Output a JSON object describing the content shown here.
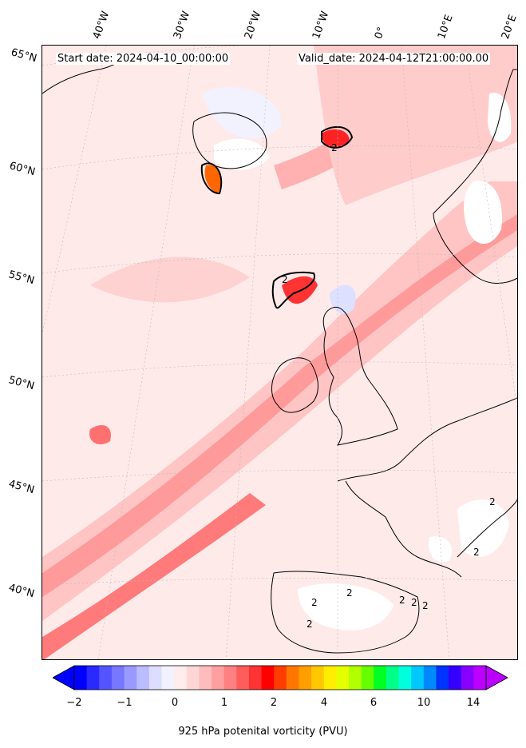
{
  "header": {
    "start_date": "Start date: 2024-04-10_00:00:00",
    "valid_date": "Valid_date: 2024-04-12T21:00:00.00"
  },
  "lat_labels": [
    "65°N",
    "60°N",
    "55°N",
    "50°N",
    "45°N",
    "40°N"
  ],
  "lon_labels": [
    "40°W",
    "30°W",
    "20°W",
    "10°W",
    "0°",
    "10°E",
    "20°E"
  ],
  "contour_labels": [
    "2",
    "2",
    "2",
    "2",
    "2",
    "2",
    "2",
    "2",
    "2",
    "2"
  ],
  "colorbar": {
    "ticks": [
      "−2",
      "−1",
      "0",
      "1",
      "2",
      "4",
      "6",
      "10",
      "14"
    ],
    "label": "925 hPa potenital vorticity (PVU)",
    "colors": [
      "#0000ff",
      "#2a2aff",
      "#5555ff",
      "#7777ff",
      "#9999ff",
      "#bbbbff",
      "#ddddff",
      "#f2f2ff",
      "#ffecec",
      "#ffd6d6",
      "#ffbcbc",
      "#ffa0a0",
      "#ff8080",
      "#ff5c5c",
      "#ff3333",
      "#ff0000",
      "#ff3d00",
      "#ff7700",
      "#ff9f00",
      "#ffc800",
      "#ffee00",
      "#e6ff00",
      "#b2ff00",
      "#66ff00",
      "#00ff22",
      "#00ff88",
      "#00ffdd",
      "#00c8ff",
      "#0088ff",
      "#0033ff",
      "#3300ff",
      "#8800ff",
      "#bb00ff"
    ],
    "min_color": "#0000ff",
    "max_color": "#bb00ff"
  },
  "colors": {
    "background_pv": "#ffeaea",
    "land_outline": "#000000",
    "grid": "#bbbbbb"
  }
}
